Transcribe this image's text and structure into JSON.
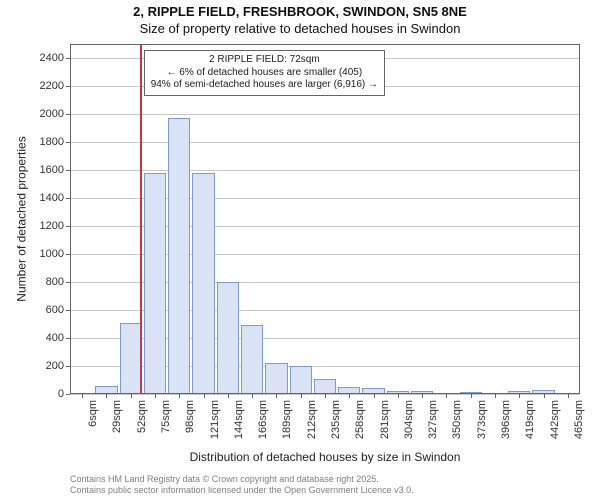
{
  "title_line1": "2, RIPPLE FIELD, FRESHBROOK, SWINDON, SN5 8NE",
  "title_line2": "Size of property relative to detached houses in Swindon",
  "ylabel": "Number of detached properties",
  "xlabel": "Distribution of detached houses by size in Swindon",
  "chart": {
    "type": "histogram",
    "background_color": "#ffffff",
    "bar_fill": "#d9e3f5",
    "bar_border": "#7e9ad0",
    "grid_color": "#c8c8c8",
    "marker_color": "#d4343a",
    "marker_value_sqm": 72,
    "x_start": 6,
    "x_step": 23,
    "x_count": 21,
    "bar_width_ratio": 0.92,
    "y_min": 0,
    "y_max": 2500,
    "y_ticks": [
      0,
      200,
      400,
      600,
      800,
      1000,
      1200,
      1400,
      1600,
      1800,
      2000,
      2200,
      2400
    ],
    "x_tick_labels": [
      "6sqm",
      "29sqm",
      "52sqm",
      "75sqm",
      "98sqm",
      "121sqm",
      "144sqm",
      "166sqm",
      "189sqm",
      "212sqm",
      "235sqm",
      "258sqm",
      "281sqm",
      "304sqm",
      "327sqm",
      "350sqm",
      "373sqm",
      "396sqm",
      "419sqm",
      "442sqm",
      "465sqm"
    ],
    "values": [
      0,
      60,
      510,
      1580,
      1970,
      1580,
      800,
      490,
      220,
      200,
      110,
      50,
      40,
      25,
      22,
      0,
      15,
      0,
      25,
      30,
      0
    ]
  },
  "callout": {
    "line1": "2 RIPPLE FIELD: 72sqm",
    "line2": "← 6% of detached houses are smaller (405)",
    "line3": "94% of semi-detached houses are larger (6,916) →"
  },
  "credits": {
    "line1": "Contains HM Land Registry data © Crown copyright and database right 2025.",
    "line2": "Contains public sector information licensed under the Open Government Licence v3.0."
  }
}
